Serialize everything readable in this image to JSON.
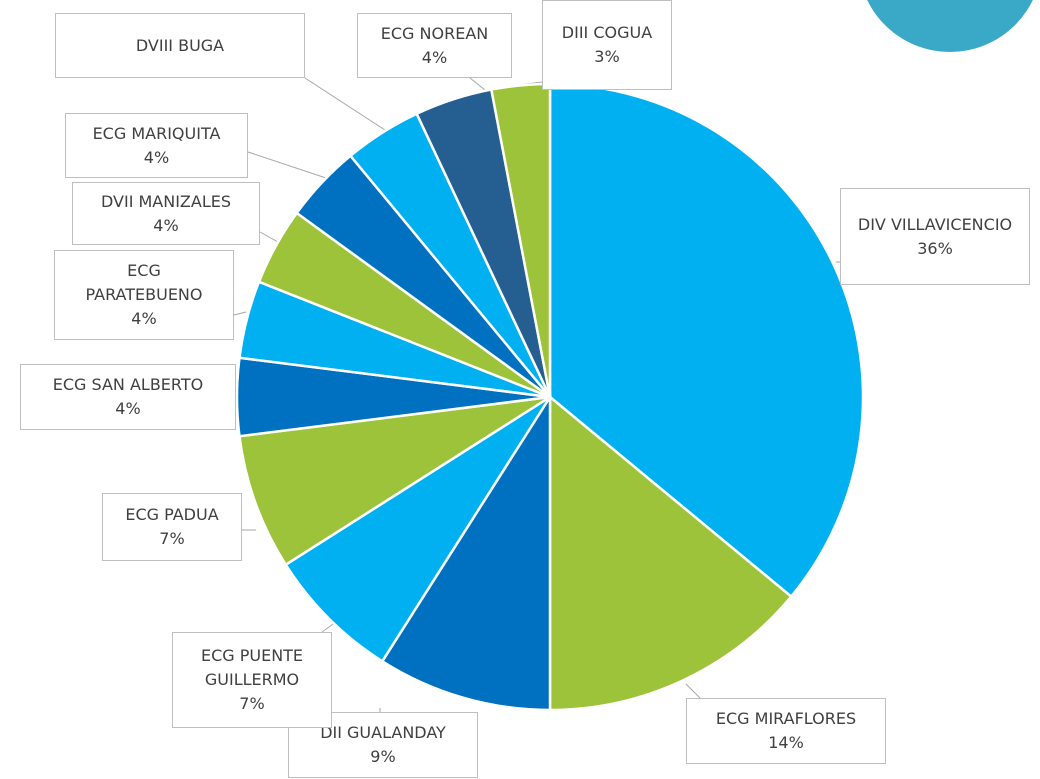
{
  "chart_data": {
    "type": "pie",
    "categories": [
      "DIV VILLAVICENCIO",
      "ECG MIRAFLORES",
      "DII GUALANDAY",
      "ECG PUENTE GUILLERMO",
      "ECG PADUA",
      "ECG SAN ALBERTO",
      "ECG PARATEBUENO",
      "DVII MANIZALES",
      "ECG MARIQUITA",
      "DVIII BUGA",
      "ECG NOREAN",
      "DIII COGUA"
    ],
    "values": [
      36,
      14,
      9,
      7,
      7,
      4,
      4,
      4,
      4,
      4,
      4,
      3
    ],
    "value_labels": [
      "36%",
      "14%",
      "9%",
      "7%",
      "7%",
      "4%",
      "4%",
      "4%",
      "4%",
      null,
      "4%",
      "3%"
    ],
    "colors": [
      "#00b0f0",
      "#9dc33b",
      "#0070c0",
      "#00b0f0",
      "#9dc33b",
      "#0070c0",
      "#00b0f0",
      "#9dc33b",
      "#0070c0",
      "#00b0f0",
      "#255e91",
      "#9dc33b"
    ]
  }
}
